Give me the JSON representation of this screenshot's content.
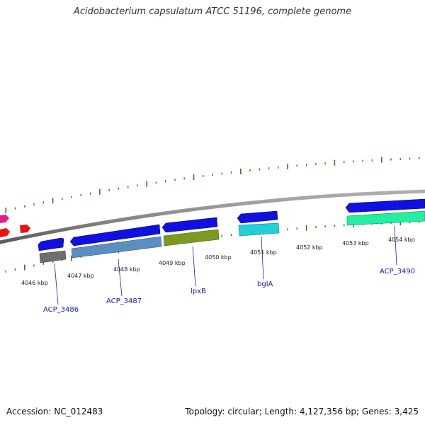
{
  "title": "Acidobacterium capsulatum ATCC 51196, complete genome",
  "footer": {
    "accession": "Accession: NC_012483",
    "summary": "Topology: circular; Length: 4,127,356 bp; Genes: 3,425"
  },
  "colors": {
    "backbone": "#8a8a8a",
    "tick": "#2e7d1e",
    "label": "#1a1aa6",
    "leader": "#2020b0"
  },
  "ruler": [
    {
      "text": "4046 kbp"
    },
    {
      "text": "4047 kbp"
    },
    {
      "text": "4048 kbp"
    },
    {
      "text": "4049 kbp"
    },
    {
      "text": "4050 kbp"
    },
    {
      "text": "4051 kbp"
    },
    {
      "text": "4052 kbp"
    },
    {
      "text": "4053 kbp"
    },
    {
      "text": "4054 kbp"
    }
  ],
  "gene_labels": [
    {
      "text": "ACP_3486"
    },
    {
      "text": "ACP_3487"
    },
    {
      "text": "lpxB"
    },
    {
      "text": "bglA"
    },
    {
      "text": "ACP_3490"
    }
  ],
  "feature_colors": {
    "cds": "#1010e0",
    "magenta": "#e0208a",
    "red": "#ee1111",
    "gray": "#6e6e6e",
    "steelblue": "#5b8fc0",
    "olive": "#7a9a22",
    "cyan": "#22d0d8",
    "spring": "#22f0a0"
  }
}
